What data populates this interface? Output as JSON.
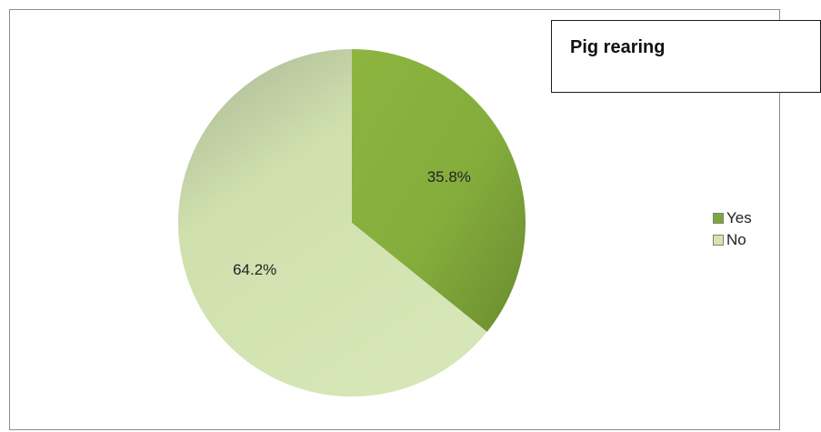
{
  "chart_data": {
    "type": "pie",
    "title": "Pig rearing",
    "categories": [
      "Yes",
      "No"
    ],
    "values": [
      35.8,
      64.2
    ],
    "data_labels": [
      "35.8%",
      "64.2%"
    ],
    "colors": [
      "#7ea73a",
      "#d4e5b2"
    ],
    "legend_placement": "right"
  }
}
